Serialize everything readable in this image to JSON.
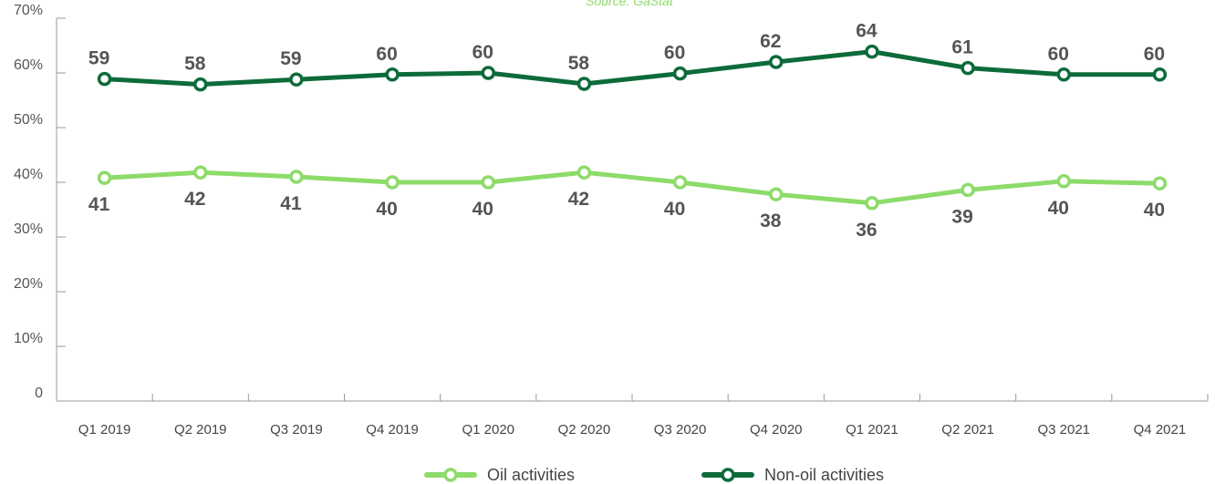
{
  "source_note": "Source: GaStat",
  "colors": {
    "oil": "#8ddb6a",
    "non_oil": "#0d6b3a",
    "axis": "#999999",
    "text": "#555555"
  },
  "chart_data": {
    "type": "line",
    "categories": [
      "Q1 2019",
      "Q2 2019",
      "Q3 2019",
      "Q4 2019",
      "Q1 2020",
      "Q2 2020",
      "Q3 2020",
      "Q4 2020",
      "Q1 2021",
      "Q2 2021",
      "Q3 2021",
      "Q4 2021"
    ],
    "y_tick_labels": [
      "0",
      "10%",
      "20%",
      "30%",
      "40%",
      "50%",
      "60%",
      "70%"
    ],
    "ylim": [
      0,
      70
    ],
    "grid": false,
    "legend_position": "bottom",
    "series": [
      {
        "name": "Oil activities",
        "color": "#8ddb6a",
        "values": [
          40.8,
          41.8,
          41,
          40,
          40,
          41.8,
          40,
          37.8,
          36.2,
          38.6,
          40.2,
          39.8
        ],
        "labels": [
          "41",
          "42",
          "41",
          "40",
          "40",
          "42",
          "40",
          "38",
          "36",
          "39",
          "40",
          "40"
        ]
      },
      {
        "name": "Non-oil activities",
        "color": "#0d6b3a",
        "values": [
          58.9,
          57.9,
          58.8,
          59.7,
          60,
          58,
          59.9,
          62,
          63.9,
          60.9,
          59.7,
          59.7
        ],
        "labels": [
          "59",
          "58",
          "59",
          "60",
          "60",
          "58",
          "60",
          "62",
          "64",
          "61",
          "60",
          "60"
        ]
      }
    ]
  }
}
